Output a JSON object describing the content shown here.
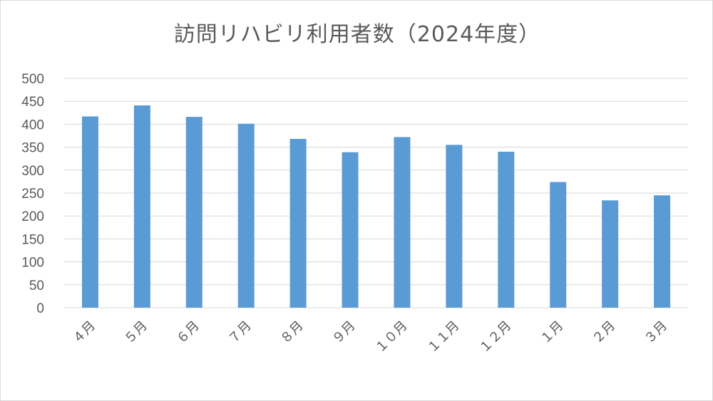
{
  "chart_data": {
    "type": "bar",
    "title": "訪問リハビリ利用者数（2024年度）",
    "categories": [
      "４月",
      "５月",
      "６月",
      "７月",
      "８月",
      "９月",
      "１０月",
      "１１月",
      "１２月",
      "１月",
      "２月",
      "３月"
    ],
    "values": [
      417,
      441,
      416,
      401,
      368,
      339,
      372,
      355,
      340,
      274,
      234,
      245
    ],
    "ylim": [
      0,
      500
    ],
    "yticks": [
      "0",
      "50",
      "100",
      "150",
      "200",
      "250",
      "300",
      "350",
      "400",
      "450",
      "500"
    ],
    "xlabel": "",
    "ylabel": "",
    "grid": true,
    "legend": "none",
    "bar_color": "#5b9bd5",
    "grid_color": "#d9d9d9"
  }
}
